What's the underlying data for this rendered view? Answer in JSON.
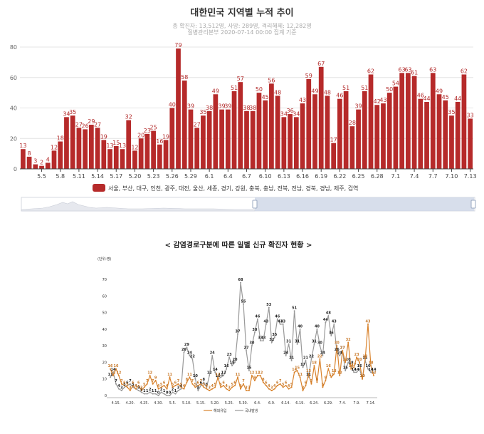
{
  "chart_data": [
    {
      "type": "bar",
      "title": "대한민국 지역별 누적 추이",
      "subtitle_1": "총 확진자: 13,512명, 사망: 289명, 격리해제: 12,282명",
      "subtitle_2": "질병관리본부 2020-07-14 00:00 집계 기준",
      "ylim": [
        0,
        80
      ],
      "yticks": [
        "0",
        "20",
        "40",
        "60",
        "80"
      ],
      "xticks": [
        "5.5",
        "5.8",
        "5.11",
        "5.14",
        "5.17",
        "5.20",
        "5.23",
        "5.26",
        "5.29",
        "6.1",
        "6.4",
        "6.7",
        "6.10",
        "6.13",
        "6.16",
        "6.19",
        "6.22",
        "6.25",
        "6.28",
        "7.1",
        "7.4",
        "7.7",
        "7.10",
        "7.13"
      ],
      "start_date": "5.2",
      "values": [
        13,
        8,
        3,
        2,
        4,
        12,
        18,
        34,
        35,
        27,
        26,
        29,
        27,
        19,
        13,
        15,
        13,
        32,
        12,
        20,
        23,
        25,
        16,
        19,
        40,
        79,
        58,
        39,
        27,
        35,
        38,
        49,
        39,
        39,
        51,
        57,
        38,
        38,
        50,
        45,
        56,
        48,
        34,
        36,
        34,
        43,
        59,
        49,
        67,
        48,
        17,
        46,
        51,
        28,
        39,
        51,
        62,
        42,
        43,
        50,
        54,
        63,
        63,
        61,
        46,
        44,
        63,
        49,
        45,
        35,
        44,
        62,
        33
      ],
      "color": "#b62a2a",
      "legend": "서울, 부산, 대구, 인천, 광주, 대전, 울산, 세종, 경기, 강원, 충북, 충남, 전북, 전남, 경북, 경남, 제주, 검역",
      "grid": true
    },
    {
      "type": "line",
      "title": "< 감염경로구분에 따른 일별 신규 확진자 현황 >",
      "unit": "(단위:명)",
      "ylim": [
        0,
        70
      ],
      "yticks": [
        "0",
        "10",
        "20",
        "30",
        "40",
        "50",
        "60",
        "70"
      ],
      "xticks": [
        "4.15.",
        "4.20.",
        "4.25.",
        "4.30.",
        "5.5.",
        "5.10.",
        "5.15.",
        "5.20.",
        "5.25.",
        "5.30.",
        "6.4.",
        "6.9.",
        "6.14.",
        "6.19.",
        "6.24.",
        "6.29.",
        "7.4.",
        "7.9.",
        "7.14."
      ],
      "start_date": "4.13.",
      "series": [
        {
          "name": "해외유입",
          "color": "#d9822b",
          "values": [
            16,
            12,
            16,
            12,
            7,
            6,
            5,
            3,
            6,
            4,
            6,
            3,
            5,
            7,
            12,
            7,
            9,
            4,
            5,
            6,
            4,
            11,
            5,
            6,
            7,
            5,
            4,
            8,
            11,
            7,
            5,
            6,
            7,
            5,
            4,
            3,
            4,
            5,
            11,
            5,
            6,
            4,
            3,
            5,
            6,
            11,
            4,
            7,
            3,
            3,
            12,
            9,
            12,
            12,
            8,
            6,
            4,
            3,
            4,
            6,
            7,
            5,
            6,
            4,
            5,
            14,
            15,
            11,
            3,
            6,
            13,
            7,
            18,
            8,
            22,
            5,
            9,
            16,
            11,
            13,
            30,
            12,
            27,
            20,
            32,
            16,
            17,
            23,
            20,
            10,
            22,
            43,
            18,
            12
          ]
        },
        {
          "name": "국내발생",
          "color": "#999999",
          "values": [
            11,
            14,
            7,
            4,
            3,
            5,
            6,
            7,
            5,
            4,
            3,
            2,
            1,
            1,
            2,
            1,
            1,
            0,
            2,
            1,
            0,
            0,
            2,
            1,
            3,
            4,
            26,
            29,
            24,
            22,
            10,
            3,
            6,
            8,
            5,
            12,
            24,
            14,
            10,
            11,
            12,
            16,
            23,
            18,
            20,
            37,
            68,
            55,
            27,
            15,
            30,
            38,
            46,
            33,
            33,
            43,
            53,
            32,
            35,
            46,
            43,
            43,
            24,
            31,
            21,
            51,
            31,
            40,
            17,
            21,
            11,
            22,
            31,
            40,
            30,
            24,
            44,
            48,
            36,
            43,
            26,
            24,
            27,
            15,
            20,
            18,
            14,
            14,
            16,
            10,
            21,
            16,
            14,
            14
          ]
        }
      ],
      "legend": [
        "해외유입",
        "국내발생"
      ]
    }
  ]
}
